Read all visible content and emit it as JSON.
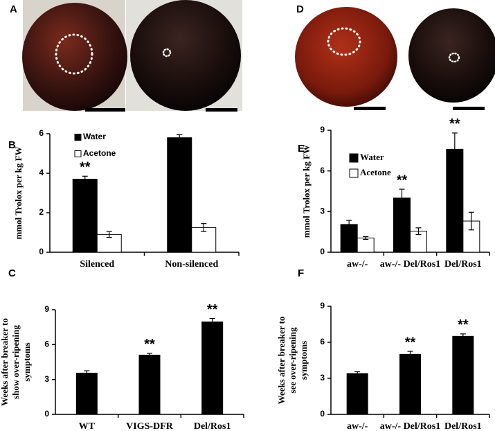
{
  "chart_data": [
    {
      "type": "bar",
      "panel": "B",
      "ylabel": [
        "mmol Trolox per kg FW"
      ],
      "categories": [
        "Silenced",
        "Non-silenced"
      ],
      "series": [
        {
          "name": "Water",
          "color": "#000000",
          "values": [
            3.7,
            5.8
          ],
          "errors": [
            0.15,
            0.15
          ]
        },
        {
          "name": "Acetone",
          "color": "#ffffff",
          "values": [
            0.9,
            1.25
          ],
          "errors": [
            0.15,
            0.2
          ]
        }
      ],
      "annotations": [
        {
          "category": "Silenced",
          "series": "Water",
          "text": "**"
        }
      ],
      "ylim": [
        0,
        6
      ],
      "yticks": [
        0,
        2,
        4,
        6
      ]
    },
    {
      "type": "bar",
      "panel": "C",
      "ylabel": [
        "Weeks after breaker to",
        "show over-ripening",
        "symptoms"
      ],
      "categories": [
        "WT",
        "VIGS-DFR",
        "Del/Ros1"
      ],
      "color": "#000000",
      "values": [
        3.55,
        5.1,
        7.95
      ],
      "errors": [
        0.2,
        0.15,
        0.3
      ],
      "annotations": [
        {
          "category": "VIGS-DFR",
          "text": "**"
        },
        {
          "category": "Del/Ros1",
          "text": "**"
        }
      ],
      "ylim": [
        0,
        9
      ],
      "yticks": [
        0,
        3,
        6,
        9
      ]
    },
    {
      "type": "bar",
      "panel": "E",
      "ylabel": [
        "mmol Trolox per kg FW"
      ],
      "categories": [
        "aw-/-",
        "aw-/- Del/Ros1",
        "Del/Ros1"
      ],
      "series": [
        {
          "name": "Water",
          "color": "#000000",
          "values": [
            2.05,
            4.0,
            7.6
          ],
          "errors": [
            0.3,
            0.65,
            1.2
          ]
        },
        {
          "name": "Acetone",
          "color": "#ffffff",
          "values": [
            1.05,
            1.55,
            2.3
          ],
          "errors": [
            0.1,
            0.25,
            0.65
          ]
        }
      ],
      "annotations": [
        {
          "category": "aw-/- Del/Ros1",
          "series": "Water",
          "text": "**"
        },
        {
          "category": "Del/Ros1",
          "series": "Water",
          "text": "**"
        }
      ],
      "ylim": [
        0,
        9
      ],
      "yticks": [
        0,
        3,
        6,
        9
      ]
    },
    {
      "type": "bar",
      "panel": "F",
      "ylabel": [
        "Weeks after breaker to",
        "see over-ripening",
        "symptoms"
      ],
      "categories": [
        "aw-/-",
        "aw-/- Del/Ros1",
        "Del/Ros1"
      ],
      "color": "#000000",
      "values": [
        3.4,
        5.0,
        6.5
      ],
      "errors": [
        0.15,
        0.25,
        0.2
      ],
      "annotations": [
        {
          "category": "aw-/- Del/Ros1",
          "text": "**"
        },
        {
          "category": "Del/Ros1",
          "text": "**"
        }
      ],
      "ylim": [
        0,
        9
      ],
      "yticks": [
        0,
        3,
        6,
        9
      ]
    }
  ],
  "photo_panels": [
    "A",
    "D"
  ]
}
